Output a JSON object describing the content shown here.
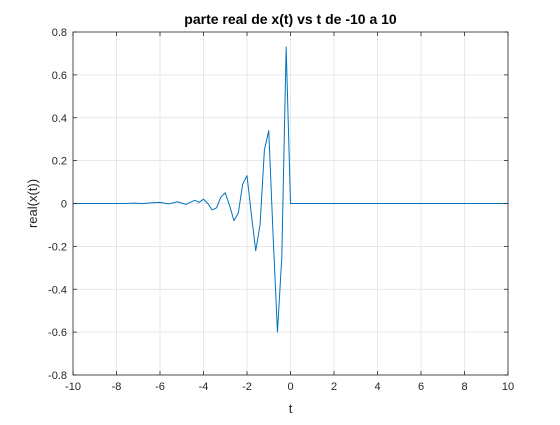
{
  "chart_data": {
    "type": "line",
    "title": "parte real de x(t) vs t de -10 a 10",
    "xlabel": "t",
    "ylabel": "real(x(t))",
    "xlim": [
      -10,
      10
    ],
    "ylim": [
      -0.8,
      0.8
    ],
    "xticks": [
      -10,
      -8,
      -6,
      -4,
      -2,
      0,
      2,
      4,
      6,
      8,
      10
    ],
    "yticks": [
      -0.8,
      -0.6,
      -0.4,
      -0.2,
      0,
      0.2,
      0.4,
      0.6,
      0.8
    ],
    "xtick_labels": [
      "-10",
      "-8",
      "-6",
      "-4",
      "-2",
      "0",
      "2",
      "4",
      "6",
      "8",
      "10"
    ],
    "ytick_labels": [
      "-0.8",
      "-0.6",
      "-0.4",
      "-0.2",
      "0",
      "0.2",
      "0.4",
      "0.6",
      "0.8"
    ],
    "grid": true,
    "line_color": "#0072BD",
    "series": [
      {
        "x": [
          -10,
          -7.6,
          -7.2,
          -6.8,
          -6.4,
          -6.0,
          -5.6,
          -5.2,
          -4.8,
          -4.6,
          -4.4,
          -4.2,
          -4.0,
          -3.8,
          -3.6,
          -3.4,
          -3.2,
          -3.0,
          -2.8,
          -2.6,
          -2.4,
          -2.2,
          -2.0,
          -1.8,
          -1.6,
          -1.4,
          -1.2,
          -1.0,
          -0.8,
          -0.6,
          -0.4,
          -0.2,
          0.0,
          0.2,
          10
        ],
        "y": [
          0,
          0,
          0.002,
          0,
          0.003,
          0.005,
          -0.002,
          0.008,
          -0.004,
          0.006,
          0.015,
          0.005,
          0.02,
          0.0,
          -0.03,
          -0.02,
          0.03,
          0.05,
          -0.01,
          -0.08,
          -0.045,
          0.09,
          0.13,
          -0.05,
          -0.22,
          -0.1,
          0.25,
          0.34,
          -0.15,
          -0.6,
          -0.25,
          0.73,
          0.0,
          0.0,
          0.0
        ]
      }
    ]
  }
}
